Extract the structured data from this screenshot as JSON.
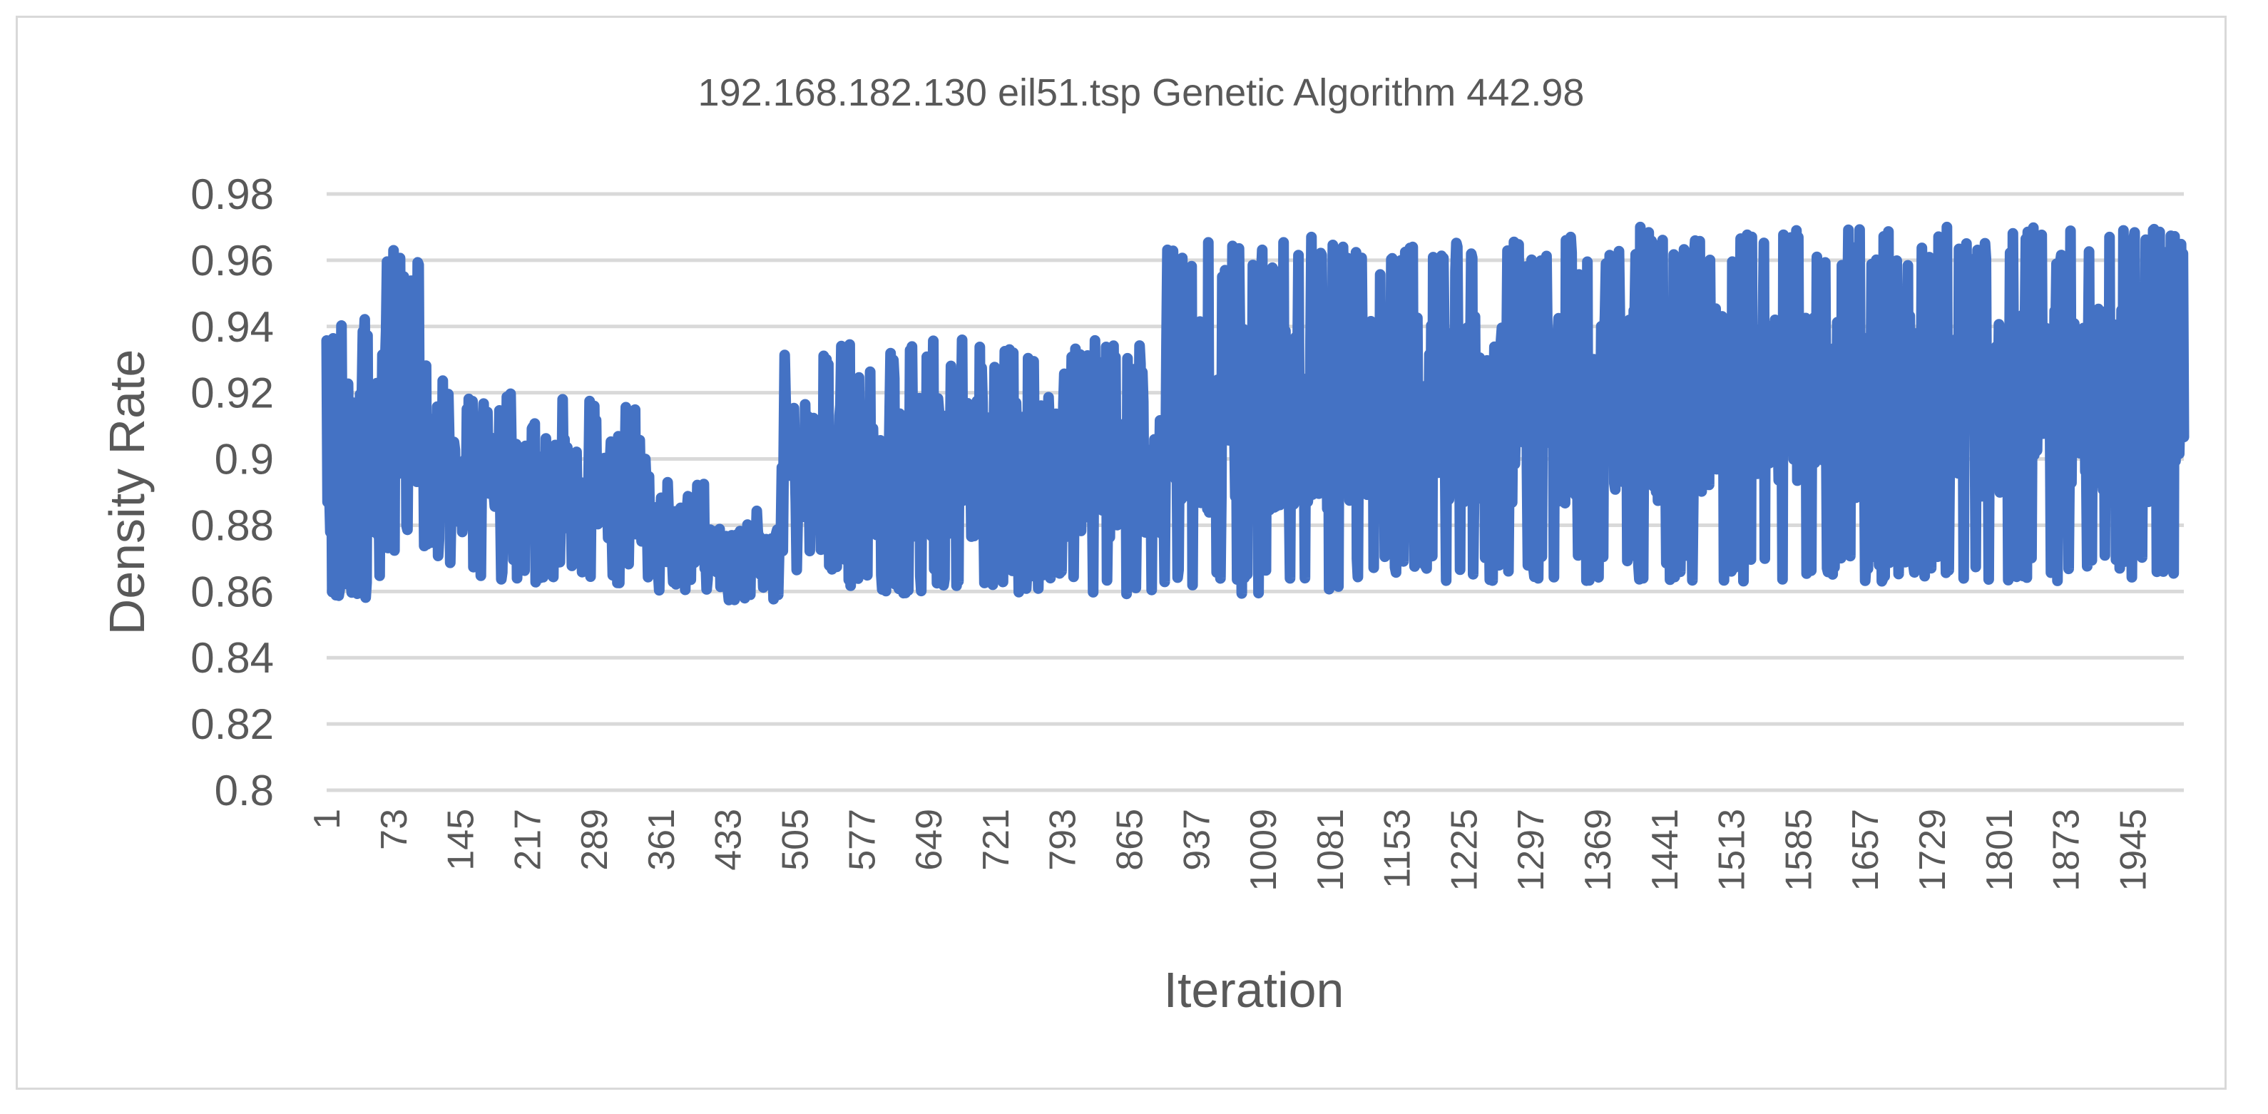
{
  "chart_data": {
    "type": "line",
    "title": "192.168.182.130 eil51.tsp Genetic Algorithm 442.98",
    "xlabel": "Iteration",
    "ylabel": "Density Rate",
    "ylim": [
      0.8,
      0.98
    ],
    "yticks": [
      "0.98",
      "0.96",
      "0.94",
      "0.92",
      "0.9",
      "0.88",
      "0.86",
      "0.84",
      "0.82",
      "0.8"
    ],
    "xticks": [
      "1",
      "73",
      "145",
      "217",
      "289",
      "361",
      "433",
      "505",
      "577",
      "649",
      "721",
      "793",
      "865",
      "937",
      "1009",
      "1081",
      "1153",
      "1225",
      "1297",
      "1369",
      "1441",
      "1513",
      "1585",
      "1657",
      "1729",
      "1801",
      "1873",
      "1945"
    ],
    "x_range": [
      1,
      2000
    ],
    "grid": true,
    "legend": "none",
    "series": [
      {
        "name": "Density Rate",
        "color": "#4472c4",
        "segments": [
          {
            "start": 1,
            "end": 60,
            "lo": 0.857,
            "hi": 0.945
          },
          {
            "start": 60,
            "end": 100,
            "lo": 0.872,
            "hi": 0.963
          },
          {
            "start": 100,
            "end": 130,
            "lo": 0.868,
            "hi": 0.93
          },
          {
            "start": 130,
            "end": 350,
            "lo": 0.862,
            "hi": 0.92
          },
          {
            "start": 350,
            "end": 410,
            "lo": 0.859,
            "hi": 0.894
          },
          {
            "start": 410,
            "end": 490,
            "lo": 0.857,
            "hi": 0.885
          },
          {
            "start": 490,
            "end": 560,
            "lo": 0.865,
            "hi": 0.935
          },
          {
            "start": 560,
            "end": 900,
            "lo": 0.859,
            "hi": 0.936
          },
          {
            "start": 900,
            "end": 1100,
            "lo": 0.859,
            "hi": 0.967
          },
          {
            "start": 1100,
            "end": 1400,
            "lo": 0.863,
            "hi": 0.967
          },
          {
            "start": 1400,
            "end": 2000,
            "lo": 0.863,
            "hi": 0.97
          }
        ],
        "peaks": [
          {
            "x": 73,
            "y": 0.963
          },
          {
            "x": 1061,
            "y": 0.967
          },
          {
            "x": 1170,
            "y": 0.964
          },
          {
            "x": 1340,
            "y": 0.967
          },
          {
            "x": 1415,
            "y": 0.97
          },
          {
            "x": 1583,
            "y": 0.969
          },
          {
            "x": 1745,
            "y": 0.97
          },
          {
            "x": 1935,
            "y": 0.969
          }
        ]
      }
    ]
  }
}
